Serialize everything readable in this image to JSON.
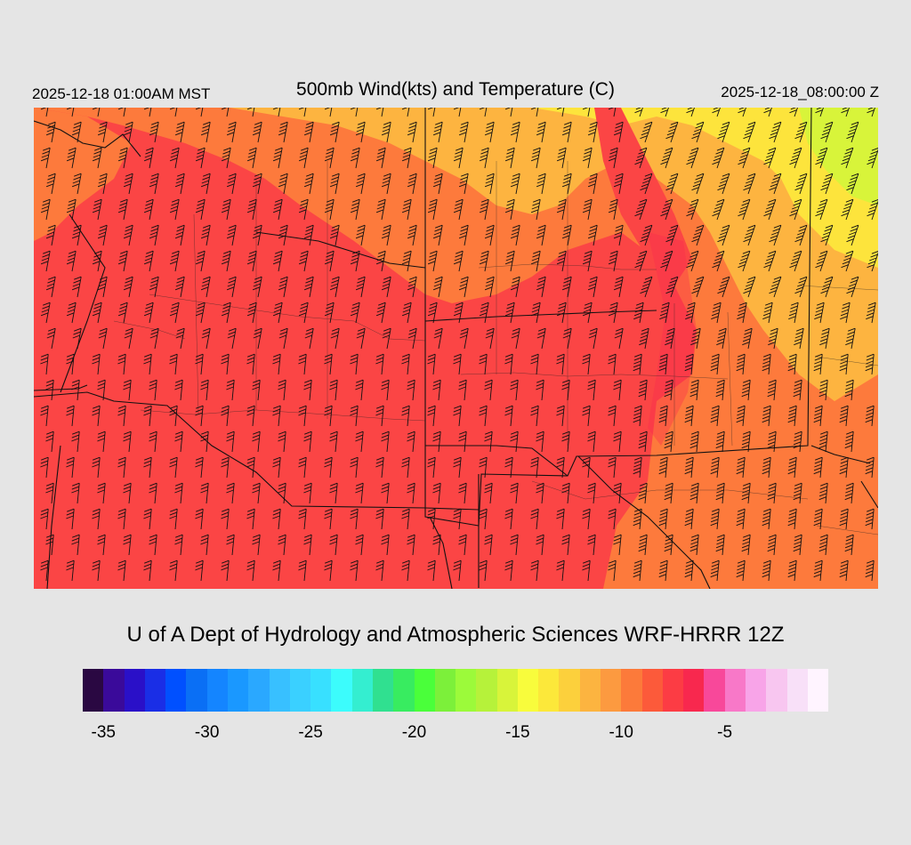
{
  "header": {
    "local_time": "2025-12-18 01:00AM MST",
    "title": "500mb Wind(kts) and Temperature (C)",
    "utc_time": "2025-12-18_08:00:00 Z"
  },
  "footer": {
    "credit": "U of A Dept of Hydrology and Atmospheric Sciences WRF-HRRR 12Z"
  },
  "colorbar": {
    "colors": [
      "#2a0842",
      "#3a0a9a",
      "#2a10c8",
      "#1a2ee6",
      "#0050ff",
      "#0a6ff5",
      "#1485ff",
      "#1a98ff",
      "#2aa8ff",
      "#38c0ff",
      "#3ad0ff",
      "#38e0ff",
      "#3cfcfc",
      "#34eed0",
      "#30e090",
      "#38ec60",
      "#4aff3a",
      "#7cf03a",
      "#9cfa3a",
      "#b6f23a",
      "#d8f43a",
      "#f8fc3c",
      "#fce83a",
      "#fcd03c",
      "#fcb440",
      "#fc9a40",
      "#fc7a3a",
      "#fc5a3a",
      "#fc3c44",
      "#f8284e",
      "#f8489a",
      "#f878c8",
      "#f8a4e8",
      "#f8c6f0",
      "#f8e0f8",
      "#fff4ff"
    ],
    "tick_labels": [
      "-35",
      "-30",
      "-25",
      "-20",
      "-15",
      "-10",
      "-5"
    ]
  },
  "map": {
    "fill_color": "#fb4545",
    "warm_color": "#fd7a3c",
    "mid_color": "#fdb440",
    "cool_color": "#fde43c",
    "cold_color": "#d8f43a",
    "border_color": "#111111"
  }
}
